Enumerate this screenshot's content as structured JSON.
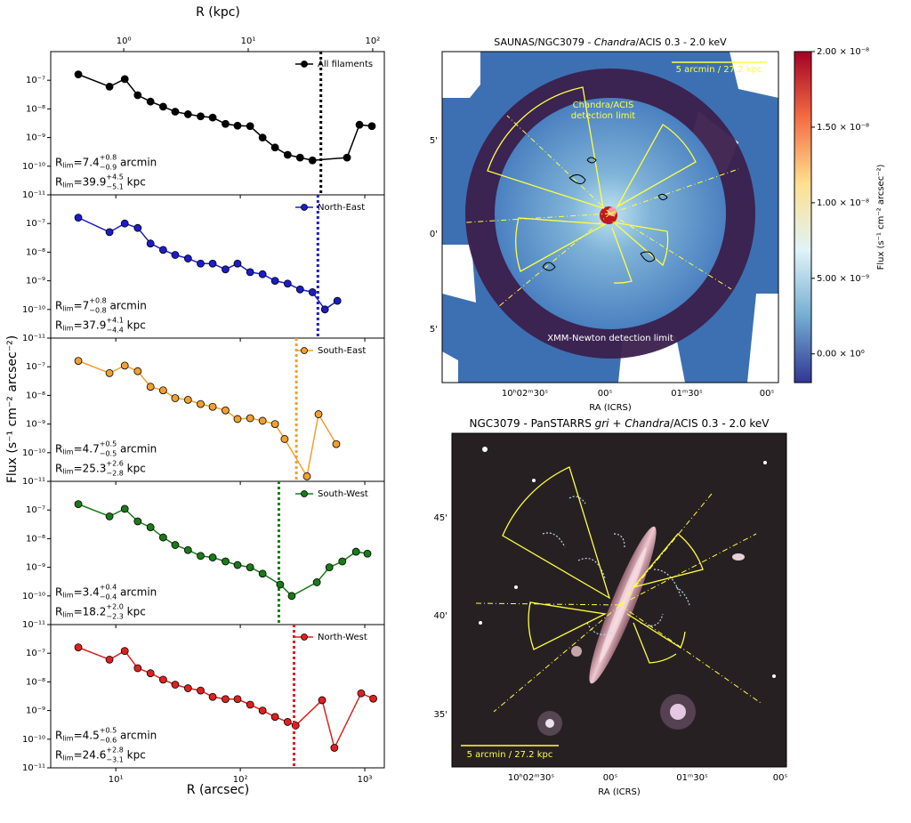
{
  "shared_x": {
    "label": "R (arcsec)",
    "xlim": [
      3,
      1435
    ],
    "xticks": [
      {
        "value": 10,
        "label": "10¹"
      },
      {
        "value": 100,
        "label": "10²"
      },
      {
        "value": 1000,
        "label": "10³"
      }
    ],
    "x2label": "R (kpc)",
    "x2lim": [
      0.259,
      124
    ],
    "x2ticks": [
      {
        "value": 1,
        "label": "10⁰"
      },
      {
        "value": 10,
        "label": "10¹"
      },
      {
        "value": 100,
        "label": "10²"
      }
    ],
    "ylabel": "Flux (s⁻¹ cm⁻² arcsec⁻²)",
    "log_x": true,
    "log_y": true
  },
  "chart_data": [
    {
      "type": "line",
      "legend": "upper right",
      "ylim": [
        1e-11,
        1e-06
      ],
      "yticks": [
        {
          "value": 1e-11,
          "label": "10⁻¹¹"
        },
        {
          "value": 1e-10,
          "label": "10⁻¹⁰"
        },
        {
          "value": 1e-09,
          "label": "10⁻⁹"
        },
        {
          "value": 1e-08,
          "label": "10⁻⁸"
        },
        {
          "value": 1e-07,
          "label": "10⁻⁷"
        }
      ],
      "x": [
        5,
        8.9,
        11.8,
        15,
        19,
        24,
        30,
        38,
        48,
        60,
        76,
        95,
        120,
        151,
        190,
        240,
        302,
        380,
        720,
        906,
        1140
      ],
      "series": [
        {
          "name": "All filaments",
          "color": "#000000",
          "values": [
            1.6e-07,
            6e-08,
            1.1e-07,
            3e-08,
            1.8e-08,
            1.2e-08,
            8e-09,
            6.5e-09,
            5.5e-09,
            5e-09,
            3e-09,
            2.6e-09,
            2.5e-09,
            1e-09,
            4.5e-10,
            2.5e-10,
            2e-10,
            1.6e-10,
            2e-10,
            2.8e-09,
            2.5e-09
          ]
        }
      ],
      "rlim_arcmin": {
        "symbol": "R",
        "subscript": "lim",
        "sign": "=",
        "value": 7.4,
        "upper": "+0.8",
        "lower": "−0.9",
        "unit": " arcmin"
      },
      "rlim_kpc": {
        "symbol": "R",
        "subscript": "lim",
        "sign": "=",
        "value": 39.9,
        "upper": "+4.5",
        "lower": "−5.1",
        "unit": " kpc"
      }
    },
    {
      "type": "line",
      "legend": "upper right",
      "ylim": [
        1e-11,
        1e-06
      ],
      "yticks": [
        {
          "value": 1e-11,
          "label": "10⁻¹¹"
        },
        {
          "value": 1e-10,
          "label": "10⁻¹⁰"
        },
        {
          "value": 1e-09,
          "label": "10⁻⁹"
        },
        {
          "value": 1e-08,
          "label": "10⁻⁸"
        },
        {
          "value": 1e-07,
          "label": "10⁻⁷"
        }
      ],
      "x": [
        5,
        8.9,
        11.8,
        15,
        19,
        24,
        30,
        38,
        48,
        60,
        76,
        95,
        120,
        151,
        190,
        240,
        302,
        380,
        478,
        602
      ],
      "series": [
        {
          "name": "North-East",
          "color": "#1c1cc8",
          "values": [
            1.6e-07,
            5e-08,
            1e-07,
            7e-08,
            2e-08,
            1.2e-08,
            8e-09,
            6e-09,
            4e-09,
            4e-09,
            2.5e-09,
            4e-09,
            2e-09,
            1.7e-09,
            1e-09,
            8e-10,
            5e-10,
            4e-10,
            1e-10,
            2e-10
          ]
        }
      ],
      "rlim_arcmin": {
        "symbol": "R",
        "subscript": "lim",
        "sign": "=",
        "value": 7.0,
        "upper": "+0.8",
        "lower": "−0.8",
        "unit": " arcmin"
      },
      "rlim_kpc": {
        "symbol": "R",
        "subscript": "lim",
        "sign": "=",
        "value": 37.9,
        "upper": "+4.1",
        "lower": "−4.4",
        "unit": " kpc"
      }
    },
    {
      "type": "line",
      "legend": "upper right",
      "ylim": [
        1e-11,
        1e-06
      ],
      "yticks": [
        {
          "value": 1e-11,
          "label": "10⁻¹¹"
        },
        {
          "value": 1e-10,
          "label": "10⁻¹⁰"
        },
        {
          "value": 1e-09,
          "label": "10⁻⁹"
        },
        {
          "value": 1e-08,
          "label": "10⁻⁸"
        },
        {
          "value": 1e-07,
          "label": "10⁻⁷"
        }
      ],
      "x": [
        5,
        8.9,
        11.8,
        15,
        19,
        24,
        30,
        38,
        48,
        60,
        76,
        95,
        120,
        151,
        190,
        227,
        343,
        425,
        590
      ],
      "series": [
        {
          "name": "South-East",
          "color": "#f0a030",
          "values": [
            1.6e-07,
            6e-08,
            1.1e-07,
            7e-08,
            2e-08,
            1.5e-08,
            8e-09,
            7e-09,
            5e-09,
            4e-09,
            3e-09,
            1.5e-09,
            1.6e-09,
            1.3e-09,
            1e-09,
            3e-10,
            1.5e-11,
            2.2e-09,
            2e-10
          ]
        }
      ],
      "rlim_arcmin": {
        "symbol": "R",
        "subscript": "lim",
        "sign": "=",
        "value": 4.7,
        "upper": "+0.5",
        "lower": "−0.5",
        "unit": " arcmin"
      },
      "rlim_kpc": {
        "symbol": "R",
        "subscript": "lim",
        "sign": "=",
        "value": 25.3,
        "upper": "+2.6",
        "lower": "−2.8",
        "unit": " kpc"
      }
    },
    {
      "type": "line",
      "legend": "upper right",
      "ylim": [
        1e-11,
        1e-06
      ],
      "yticks": [
        {
          "value": 1e-11,
          "label": "10⁻¹¹"
        },
        {
          "value": 1e-10,
          "label": "10⁻¹⁰"
        },
        {
          "value": 1e-09,
          "label": "10⁻⁹"
        },
        {
          "value": 1e-08,
          "label": "10⁻⁸"
        },
        {
          "value": 1e-07,
          "label": "10⁻⁷"
        }
      ],
      "x": [
        5,
        8.9,
        11.8,
        15,
        19,
        24,
        30,
        38,
        48,
        60,
        76,
        95,
        120,
        151,
        209,
        259,
        412,
        519,
        660,
        850,
        1050
      ],
      "series": [
        {
          "name": "South-West",
          "color": "#1a7a1a",
          "values": [
            1.6e-07,
            6e-08,
            1.1e-07,
            4e-08,
            2.5e-08,
            1.1e-08,
            6e-09,
            4e-09,
            2.5e-09,
            2.2e-09,
            1.6e-09,
            1.2e-09,
            1e-09,
            6e-10,
            2.5e-10,
            1e-10,
            3e-10,
            1e-09,
            1.6e-09,
            3.5e-09,
            3e-09
          ]
        }
      ],
      "rlim_arcmin": {
        "symbol": "R",
        "subscript": "lim",
        "sign": "=",
        "value": 3.4,
        "upper": "+0.4",
        "lower": "−0.4",
        "unit": " arcmin"
      },
      "rlim_kpc": {
        "symbol": "R",
        "subscript": "lim",
        "sign": "=",
        "value": 18.2,
        "upper": "+2.0",
        "lower": "−2.3",
        "unit": " kpc"
      }
    },
    {
      "type": "line",
      "legend": "upper right",
      "ylim": [
        1e-11,
        1e-06
      ],
      "yticks": [
        {
          "value": 1e-11,
          "label": "10⁻¹¹"
        },
        {
          "value": 1e-10,
          "label": "10⁻¹⁰"
        },
        {
          "value": 1e-09,
          "label": "10⁻⁹"
        },
        {
          "value": 1e-08,
          "label": "10⁻⁸"
        },
        {
          "value": 1e-07,
          "label": "10⁻⁷"
        }
      ],
      "x": [
        5,
        8.9,
        11.8,
        15,
        19,
        24,
        30,
        38,
        48,
        60,
        76,
        95,
        120,
        151,
        190,
        240,
        278,
        454,
        570,
        935,
        1170
      ],
      "series": [
        {
          "name": "North-West",
          "color": "#e02020",
          "values": [
            1.6e-07,
            6e-08,
            1.2e-07,
            3e-08,
            2e-08,
            1.2e-08,
            8e-09,
            6e-09,
            5e-09,
            3e-09,
            2.5e-09,
            2.5e-09,
            1.6e-09,
            1e-09,
            6e-10,
            4e-10,
            3e-10,
            2.3e-09,
            5e-11,
            4e-09,
            2.6e-09
          ]
        }
      ],
      "rlim_arcmin": {
        "symbol": "R",
        "subscript": "lim",
        "sign": "=",
        "value": 4.5,
        "upper": "+0.5",
        "lower": "−0.6",
        "unit": " arcmin"
      },
      "rlim_kpc": {
        "symbol": "R",
        "subscript": "lim",
        "sign": "=",
        "value": 24.6,
        "upper": "+2.8",
        "lower": "−3.1",
        "unit": " kpc"
      }
    }
  ],
  "images": [
    {
      "title": [
        "SAUNAS/NGC3079 - ",
        "Chandra",
        "/ACIS 0.3 - 2.0 keV"
      ],
      "scale_bar": "5 arcmin / 27.2 kpc",
      "annotations": [
        "Chandra/ACIS",
        "detection limit",
        "XMM-Newton detection limit"
      ],
      "yticks": [
        "5'",
        "0'",
        "5'"
      ],
      "xticks": [
        "10ʰ02ᵐ30ˢ",
        "00ˢ",
        "01ᵐ30ˢ",
        "00ˢ"
      ],
      "xlabel": "RA (ICRS)",
      "colorbar": {
        "label": "Flux (s⁻¹ cm⁻² arcsec⁻²)",
        "lim": [
          -1.9e-09,
          2e-08
        ],
        "ticks": [
          {
            "value": 0,
            "label": "0.00 × 10⁰"
          },
          {
            "value": 5e-09,
            "label": "5.00 × 10⁻⁹"
          },
          {
            "value": 1e-08,
            "label": "1.00 × 10⁻⁸"
          },
          {
            "value": 1.5e-08,
            "label": "1.50 × 10⁻⁸"
          },
          {
            "value": 2e-08,
            "label": "2.00 × 10⁻⁸"
          }
        ]
      }
    },
    {
      "title": [
        "NGC3079 - PanSTARRS ",
        "gri",
        " + ",
        "Chandra",
        "/ACIS 0.3 - 2.0 keV"
      ],
      "scale_bar": "5 arcmin / 27.2 kpc",
      "yticks": [
        "45'",
        "40'",
        "35'"
      ],
      "xticks": [
        "10ʰ02ᵐ30ˢ",
        "00ˢ",
        "01ᵐ30ˢ",
        "00ˢ"
      ],
      "xlabel": "RA (ICRS)"
    }
  ]
}
